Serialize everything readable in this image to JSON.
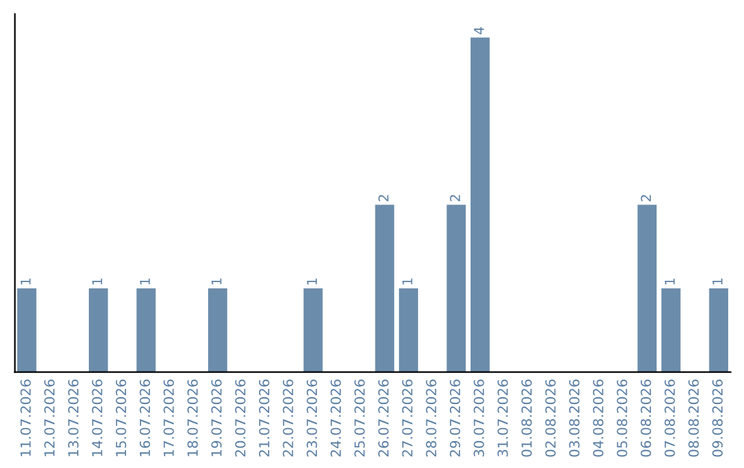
{
  "chart_data": {
    "type": "bar",
    "categories": [
      "11.07.2026",
      "12.07.2026",
      "13.07.2026",
      "14.07.2026",
      "15.07.2026",
      "16.07.2026",
      "17.07.2026",
      "18.07.2026",
      "19.07.2026",
      "20.07.2026",
      "21.07.2026",
      "22.07.2026",
      "23.07.2026",
      "24.07.2026",
      "25.07.2026",
      "26.07.2026",
      "27.07.2026",
      "28.07.2026",
      "29.07.2026",
      "30.07.2026",
      "31.07.2026",
      "01.08.2026",
      "02.08.2026",
      "03.08.2026",
      "04.08.2026",
      "05.08.2026",
      "06.08.2026",
      "07.08.2026",
      "08.08.2026",
      "09.08.2026"
    ],
    "values": [
      1,
      0,
      0,
      1,
      0,
      1,
      0,
      0,
      1,
      0,
      0,
      0,
      1,
      0,
      0,
      2,
      1,
      0,
      2,
      4,
      0,
      0,
      0,
      0,
      0,
      0,
      2,
      1,
      0,
      1
    ],
    "value_labels": [
      "1",
      null,
      null,
      "1",
      null,
      "1",
      null,
      null,
      "1",
      null,
      null,
      null,
      "1",
      null,
      null,
      "2",
      "1",
      null,
      "2",
      "4",
      null,
      null,
      null,
      null,
      null,
      null,
      "2",
      "1",
      null,
      "1"
    ],
    "color": "#6b8cab",
    "tick_labels": "x",
    "grid": false,
    "legend": false
  }
}
